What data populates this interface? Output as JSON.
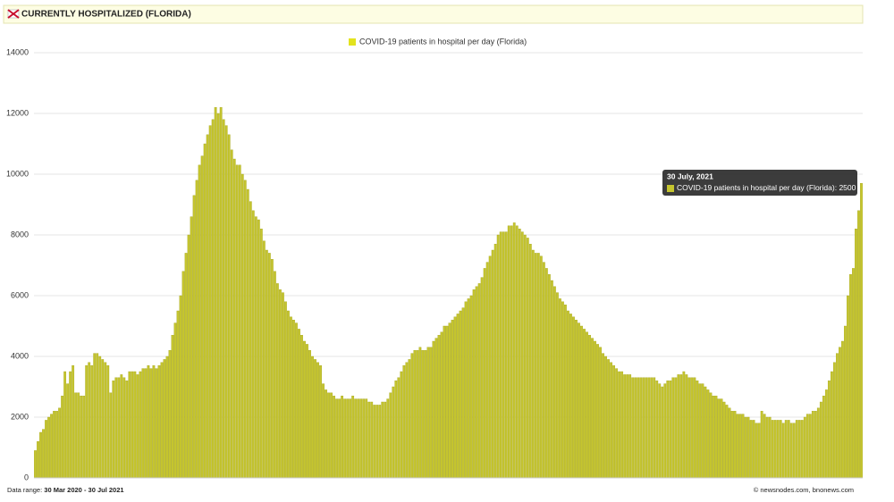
{
  "header": {
    "title": "CURRENTLY HOSPITALIZED (FLORIDA)"
  },
  "chart_data": {
    "type": "bar",
    "series": [
      {
        "name": "COVID-19 patients in hospital per day (Florida)",
        "color": "#c5c52e",
        "values": [
          900,
          1200,
          1500,
          1600,
          1900,
          2000,
          2100,
          2200,
          2200,
          2300,
          2700,
          3500,
          3100,
          3500,
          3700,
          2800,
          2800,
          2700,
          2700,
          3700,
          3800,
          3700,
          4100,
          4100,
          4000,
          3900,
          3800,
          3700,
          2800,
          3200,
          3300,
          3300,
          3400,
          3300,
          3200,
          3500,
          3500,
          3500,
          3400,
          3500,
          3600,
          3600,
          3700,
          3600,
          3700,
          3600,
          3700,
          3800,
          3900,
          4000,
          4200,
          4700,
          5100,
          5500,
          6000,
          6800,
          7400,
          8000,
          8600,
          9300,
          9800,
          10300,
          10600,
          11000,
          11300,
          11600,
          11800,
          12200,
          12000,
          12200,
          11800,
          11600,
          11300,
          10800,
          10500,
          10300,
          10300,
          10000,
          9800,
          9500,
          9100,
          8800,
          8600,
          8500,
          8200,
          7800,
          7500,
          7400,
          7200,
          6800,
          6400,
          6200,
          6100,
          5800,
          5500,
          5300,
          5200,
          5100,
          4900,
          4700,
          4500,
          4400,
          4200,
          4000,
          3900,
          3800,
          3700,
          3100,
          2900,
          2800,
          2800,
          2700,
          2600,
          2600,
          2700,
          2600,
          2600,
          2600,
          2700,
          2600,
          2600,
          2600,
          2600,
          2600,
          2500,
          2500,
          2400,
          2400,
          2400,
          2500,
          2500,
          2600,
          2800,
          3000,
          3200,
          3300,
          3500,
          3700,
          3800,
          3900,
          4100,
          4200,
          4200,
          4300,
          4200,
          4200,
          4300,
          4300,
          4500,
          4600,
          4700,
          4800,
          5000,
          5000,
          5100,
          5200,
          5300,
          5400,
          5500,
          5600,
          5800,
          5900,
          6000,
          6200,
          6300,
          6400,
          6600,
          6900,
          7100,
          7300,
          7500,
          7700,
          8000,
          8100,
          8100,
          8100,
          8300,
          8300,
          8400,
          8300,
          8200,
          8100,
          8000,
          7900,
          7700,
          7500,
          7400,
          7400,
          7300,
          7100,
          6900,
          6700,
          6500,
          6300,
          6100,
          5900,
          5800,
          5700,
          5500,
          5400,
          5300,
          5200,
          5100,
          5000,
          4900,
          4800,
          4700,
          4600,
          4500,
          4400,
          4300,
          4100,
          4000,
          3900,
          3800,
          3700,
          3600,
          3500,
          3500,
          3400,
          3400,
          3400,
          3300,
          3300,
          3300,
          3300,
          3300,
          3300,
          3300,
          3300,
          3300,
          3200,
          3100,
          3000,
          3100,
          3200,
          3200,
          3300,
          3300,
          3400,
          3400,
          3500,
          3400,
          3300,
          3300,
          3300,
          3200,
          3100,
          3100,
          3000,
          2900,
          2800,
          2700,
          2700,
          2600,
          2600,
          2500,
          2400,
          2300,
          2200,
          2200,
          2100,
          2100,
          2100,
          2000,
          2000,
          1900,
          1900,
          1800,
          1800,
          2200,
          2100,
          2000,
          2000,
          1900,
          1900,
          1900,
          1900,
          1800,
          1900,
          1900,
          1800,
          1800,
          1900,
          1900,
          1900,
          2000,
          2100,
          2100,
          2200,
          2200,
          2300,
          2500,
          2700,
          2900,
          3200,
          3500,
          3800,
          4100,
          4300,
          4500,
          5000,
          6000,
          6700,
          6900,
          8200,
          8800,
          9699
        ]
      }
    ],
    "ylim": [
      0,
      14000
    ],
    "yticks": [
      0,
      2000,
      4000,
      6000,
      8000,
      10000,
      12000,
      14000
    ],
    "grid": true,
    "tooltip": {
      "title": "30 July, 2021",
      "label": "COVID-19 patients in hospital per day (Florida):"
    }
  },
  "footer": {
    "range_label": "Data range:",
    "start": "30 Mar 2020",
    "separator": "-",
    "end": "30 Jul 2021",
    "credit": "© newsnodes.com, bnonews.com"
  }
}
